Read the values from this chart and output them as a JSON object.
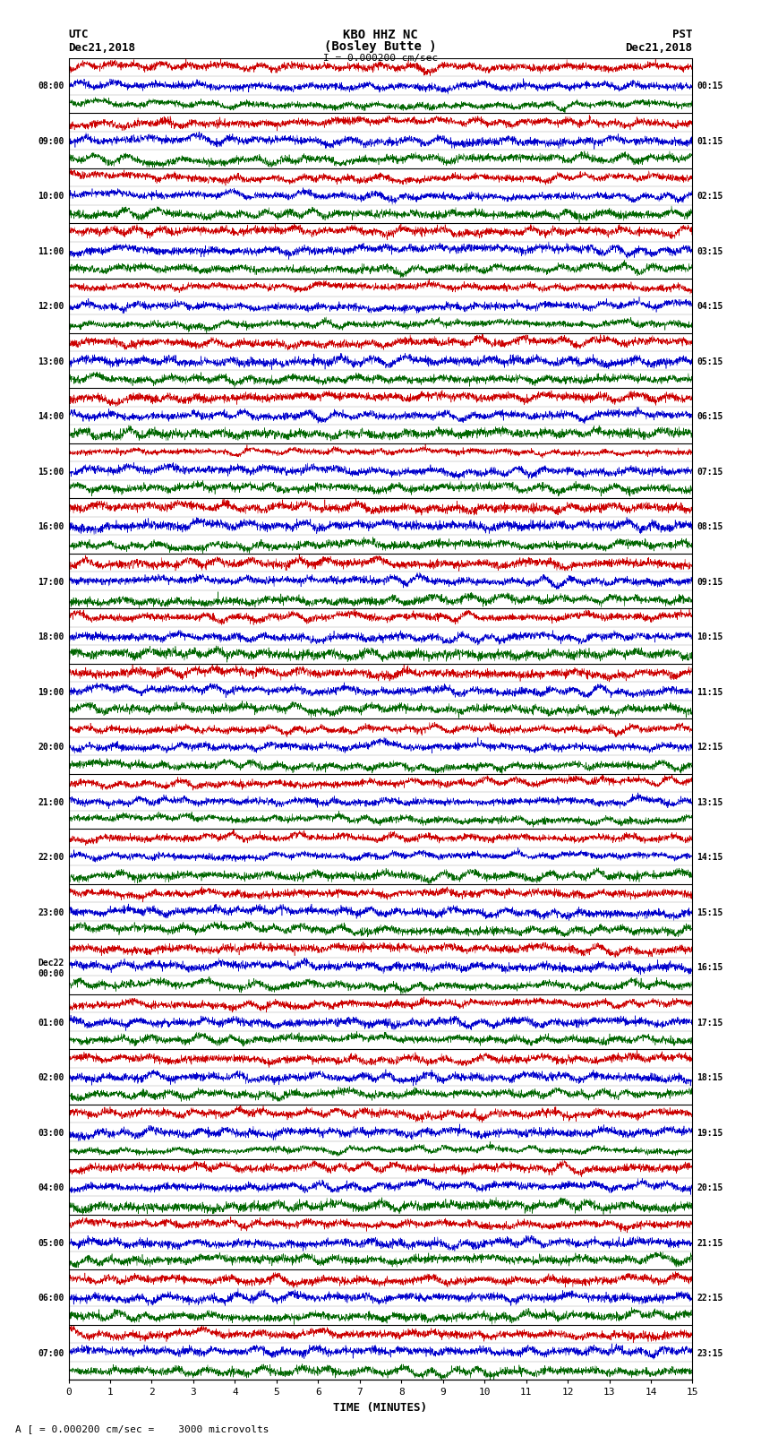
{
  "title_line1": "KBO HHZ NC",
  "title_line2": "(Bosley Butte )",
  "scale_text": "I = 0.000200 cm/sec",
  "left_timezone": "UTC",
  "left_date": "Dec21,2018",
  "right_timezone": "PST",
  "right_date": "Dec21,2018",
  "bottom_label": "TIME (MINUTES)",
  "bottom_note": "A [ = 0.000200 cm/sec =    3000 microvolts",
  "utc_labels": [
    "08:00",
    "09:00",
    "10:00",
    "11:00",
    "12:00",
    "13:00",
    "14:00",
    "15:00",
    "16:00",
    "17:00",
    "18:00",
    "19:00",
    "20:00",
    "21:00",
    "22:00",
    "23:00",
    "Dec22\n00:00",
    "01:00",
    "02:00",
    "03:00",
    "04:00",
    "05:00",
    "06:00",
    "07:00"
  ],
  "pst_labels": [
    "00:15",
    "01:15",
    "02:15",
    "03:15",
    "04:15",
    "05:15",
    "06:15",
    "07:15",
    "08:15",
    "09:15",
    "10:15",
    "11:15",
    "12:15",
    "13:15",
    "14:15",
    "15:15",
    "16:15",
    "17:15",
    "18:15",
    "19:15",
    "20:15",
    "21:15",
    "22:15",
    "23:15"
  ],
  "n_rows": 24,
  "n_minutes": 15,
  "bg_color": "#ffffff",
  "trace_colors": [
    "#cc0000",
    "#0000cc",
    "#006600",
    "#000000"
  ],
  "sub_traces_per_row": 3,
  "figsize": [
    8.5,
    16.13
  ],
  "dpi": 100
}
